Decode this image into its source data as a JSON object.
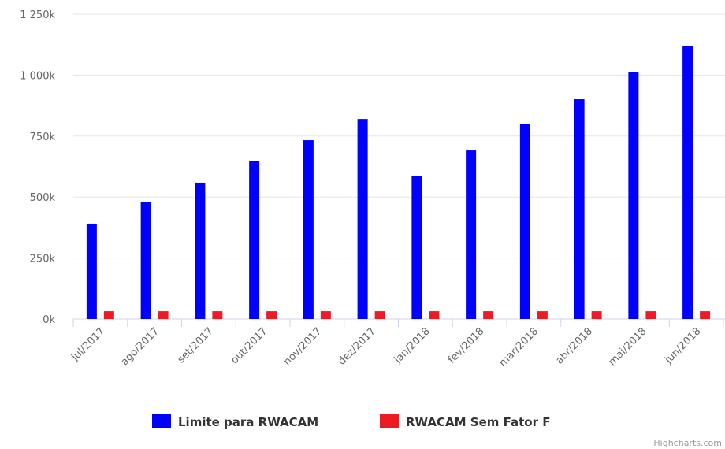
{
  "chart_data": {
    "type": "bar",
    "categories": [
      "jul/2017",
      "ago/2017",
      "set/2017",
      "out/2017",
      "nov/2017",
      "dez/2017",
      "jan/2018",
      "fev/2018",
      "mar/2018",
      "abr/2018",
      "mai/2018",
      "jun/2018"
    ],
    "series": [
      {
        "name": "Limite para RWACAM",
        "color": "#0000ff",
        "values": [
          391000,
          478000,
          559000,
          646000,
          733000,
          820000,
          585000,
          691000,
          798000,
          901000,
          1011000,
          1118000
        ]
      },
      {
        "name": "RWACAM Sem Fator F",
        "color": "#ed1c24",
        "values": [
          32000,
          32000,
          32000,
          32000,
          32000,
          32000,
          32000,
          32000,
          32000,
          32000,
          32000,
          32000
        ]
      }
    ],
    "ylim": [
      0,
      1250000
    ],
    "yticks": [
      {
        "value": 0,
        "label": "0k"
      },
      {
        "value": 250000,
        "label": "250k"
      },
      {
        "value": 500000,
        "label": "500k"
      },
      {
        "value": 750000,
        "label": "750k"
      },
      {
        "value": 1000000,
        "label": "1 000k"
      },
      {
        "value": 1250000,
        "label": "1 250k"
      }
    ],
    "grid": true,
    "legend": "bottom",
    "credit": "Highcharts.com"
  }
}
